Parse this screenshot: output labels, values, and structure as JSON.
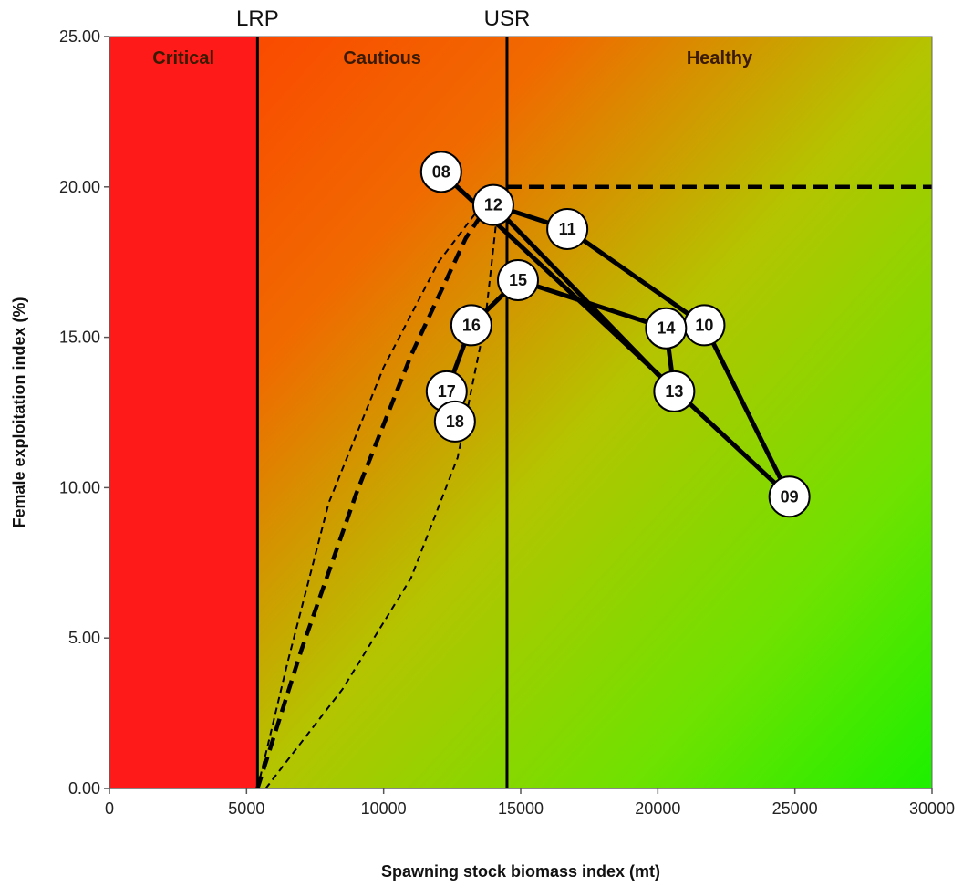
{
  "chart_data": {
    "type": "scatter",
    "title": "",
    "xlabel": "Spawning stock biomass index (mt)",
    "ylabel": "Female exploitation index (%)",
    "xlim": [
      0,
      30000
    ],
    "ylim": [
      0,
      25
    ],
    "x_ticks": [
      "0",
      "5000",
      "10000",
      "15000",
      "20000",
      "25000",
      "30000"
    ],
    "x_tick_values": [
      0,
      5000,
      10000,
      15000,
      20000,
      25000,
      30000
    ],
    "y_ticks": [
      "0.00",
      "5.00",
      "10.00",
      "15.00",
      "20.00",
      "25.00"
    ],
    "y_tick_values": [
      0,
      5,
      10,
      15,
      20,
      25
    ],
    "grid": false,
    "zones": [
      {
        "label": "Critical",
        "x_from": 0,
        "x_to": 5400,
        "color": "#ff1a1a"
      },
      {
        "label": "Cautious",
        "x_from": 5400,
        "x_to": 14500
      },
      {
        "label": "Healthy",
        "x_from": 14500,
        "x_to": 30000
      }
    ],
    "reference_lines": [
      {
        "label": "LRP",
        "x": 5400
      },
      {
        "label": "USR",
        "x": 14500
      }
    ],
    "removal_reference": {
      "y": 20,
      "x_from": 14500,
      "x_to": 30000,
      "style": "dashed"
    },
    "confidence_curves": {
      "apex": [
        14250,
        20.0
      ],
      "base": [
        5400,
        0.0
      ],
      "inner": {
        "x": [
          5400,
          7000,
          9000,
          11000,
          13000,
          14250
        ],
        "y": [
          0.0,
          4.6,
          9.8,
          14.4,
          18.3,
          20.0
        ]
      },
      "outer": {
        "x": [
          5400,
          6500,
          8000,
          10000,
          12000,
          13500,
          14250
        ],
        "y": [
          0.0,
          4.2,
          9.5,
          14.0,
          17.5,
          19.3,
          20.0
        ]
      },
      "lower": {
        "x": [
          5700,
          8500,
          11000,
          12700,
          13700,
          14250
        ],
        "y": [
          0.0,
          3.3,
          7.0,
          11.0,
          15.5,
          20.0
        ]
      }
    },
    "series": [
      {
        "points": [
          {
            "label": "08",
            "x": 12100,
            "y": 20.5
          },
          {
            "label": "09",
            "x": 24800,
            "y": 9.7
          },
          {
            "label": "10",
            "x": 21700,
            "y": 15.4
          },
          {
            "label": "11",
            "x": 16700,
            "y": 18.6
          },
          {
            "label": "12",
            "x": 14000,
            "y": 19.4
          },
          {
            "label": "13",
            "x": 20600,
            "y": 13.2
          },
          {
            "label": "14",
            "x": 20300,
            "y": 15.3
          },
          {
            "label": "15",
            "x": 14900,
            "y": 16.9
          },
          {
            "label": "16",
            "x": 13200,
            "y": 15.4
          },
          {
            "label": "17",
            "x": 12300,
            "y": 13.2
          },
          {
            "label": "18",
            "x": 12600,
            "y": 12.2
          }
        ]
      }
    ],
    "highlight_label": "18",
    "highlight_color": "#ff1a1a"
  }
}
